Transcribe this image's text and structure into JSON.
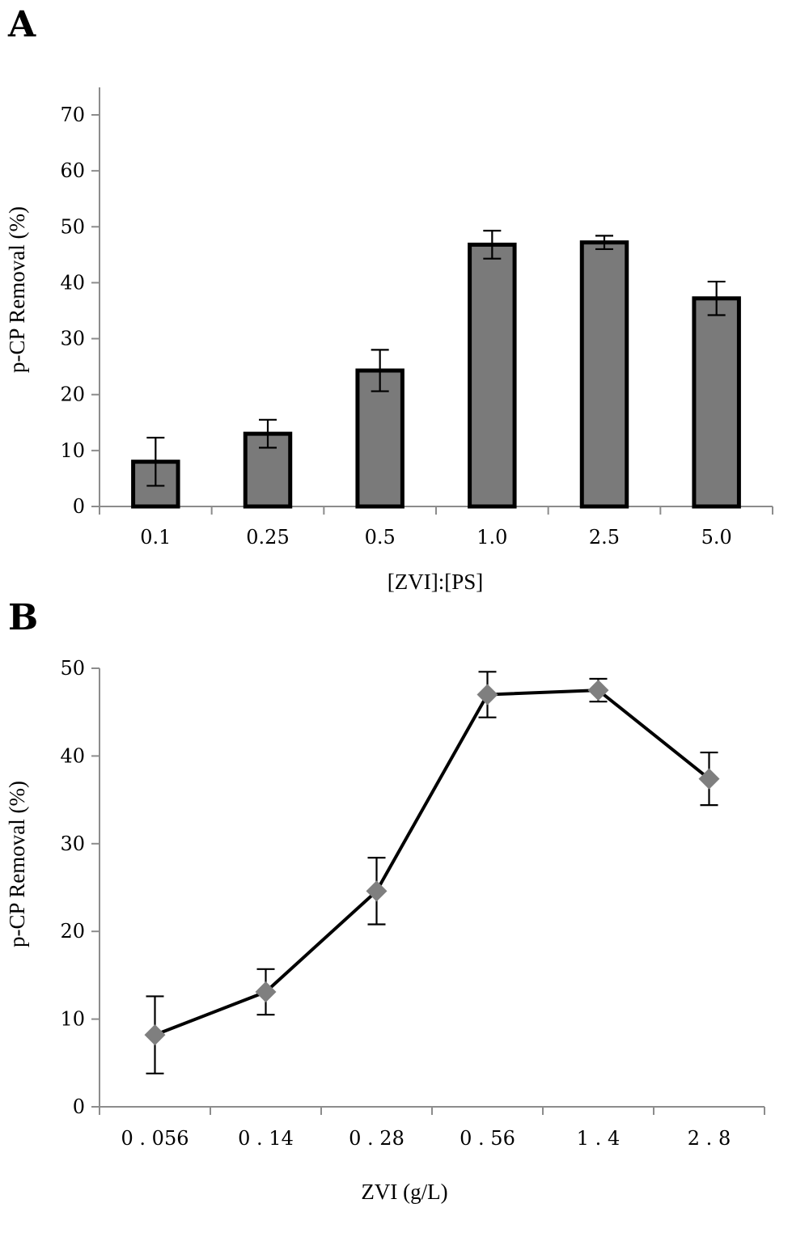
{
  "chart_data": [
    {
      "panel": "A",
      "type": "bar",
      "xlabel": "[ZVI]:[PS]",
      "ylabel": "p-CP Removal (%)",
      "ylim": [
        0,
        70
      ],
      "yticks": [
        "0",
        "10",
        "20",
        "30",
        "40",
        "50",
        "60",
        "70"
      ],
      "categories": [
        "0.1",
        "0.25",
        "0.5",
        "1.0",
        "2.5",
        "5.0"
      ],
      "values": [
        8.0,
        13.0,
        24.3,
        46.8,
        47.2,
        37.2
      ],
      "errors": [
        4.3,
        2.5,
        3.7,
        2.5,
        1.2,
        3.0
      ],
      "grid": false,
      "bar_color": "#7a7a7a"
    },
    {
      "panel": "B",
      "type": "line",
      "xlabel": "ZVI (g/L)",
      "ylabel": "p-CP Removal (%)",
      "ylim": [
        0,
        50
      ],
      "yticks": [
        "0",
        "10",
        "20",
        "30",
        "40",
        "50"
      ],
      "categories": [
        "0 . 056",
        "0 . 14",
        "0 . 28",
        "0 . 56",
        "1  . 4",
        "2  . 8"
      ],
      "values": [
        8.2,
        13.1,
        24.6,
        47.0,
        47.5,
        37.4
      ],
      "errors": [
        4.4,
        2.6,
        3.8,
        2.6,
        1.3,
        3.0
      ],
      "grid": false,
      "marker": "diamond",
      "marker_color": "#7f7f7f",
      "line_color": "#000000"
    }
  ]
}
